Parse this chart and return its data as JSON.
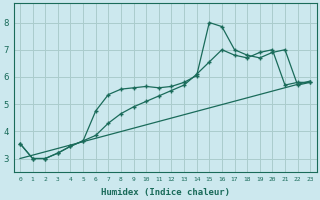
{
  "xlabel": "Humidex (Indice chaleur)",
  "ylabel": "",
  "background_color": "#cce8ee",
  "grid_color": "#aacccc",
  "line_color": "#1a6b5a",
  "xlim": [
    -0.5,
    23.5
  ],
  "ylim": [
    2.5,
    8.7
  ],
  "xticks": [
    0,
    1,
    2,
    3,
    4,
    5,
    6,
    7,
    8,
    9,
    10,
    11,
    12,
    13,
    14,
    15,
    16,
    17,
    18,
    19,
    20,
    21,
    22,
    23
  ],
  "yticks": [
    3,
    4,
    5,
    6,
    7,
    8
  ],
  "line1_x": [
    0,
    1,
    2,
    3,
    4,
    5,
    6,
    7,
    8,
    9,
    10,
    11,
    12,
    13,
    14,
    15,
    16,
    17,
    18,
    19,
    20,
    21,
    22,
    23
  ],
  "line1_y": [
    3.55,
    3.0,
    3.0,
    3.2,
    3.45,
    3.65,
    4.75,
    5.35,
    5.55,
    5.6,
    5.65,
    5.6,
    5.65,
    5.8,
    6.05,
    8.0,
    7.85,
    7.0,
    6.8,
    6.7,
    6.9,
    7.0,
    5.7,
    5.8
  ],
  "line2_x": [
    0,
    1,
    2,
    3,
    4,
    5,
    6,
    7,
    8,
    9,
    10,
    11,
    12,
    13,
    14,
    15,
    16,
    17,
    18,
    19,
    20,
    21,
    22,
    23
  ],
  "line2_y": [
    3.55,
    3.0,
    3.0,
    3.2,
    3.45,
    3.65,
    3.85,
    4.3,
    4.65,
    4.9,
    5.1,
    5.3,
    5.5,
    5.7,
    6.1,
    6.55,
    7.0,
    6.8,
    6.7,
    6.9,
    7.0,
    5.7,
    5.8,
    5.8
  ],
  "line3_x": [
    0,
    23
  ],
  "line3_y": [
    3.0,
    5.85
  ]
}
